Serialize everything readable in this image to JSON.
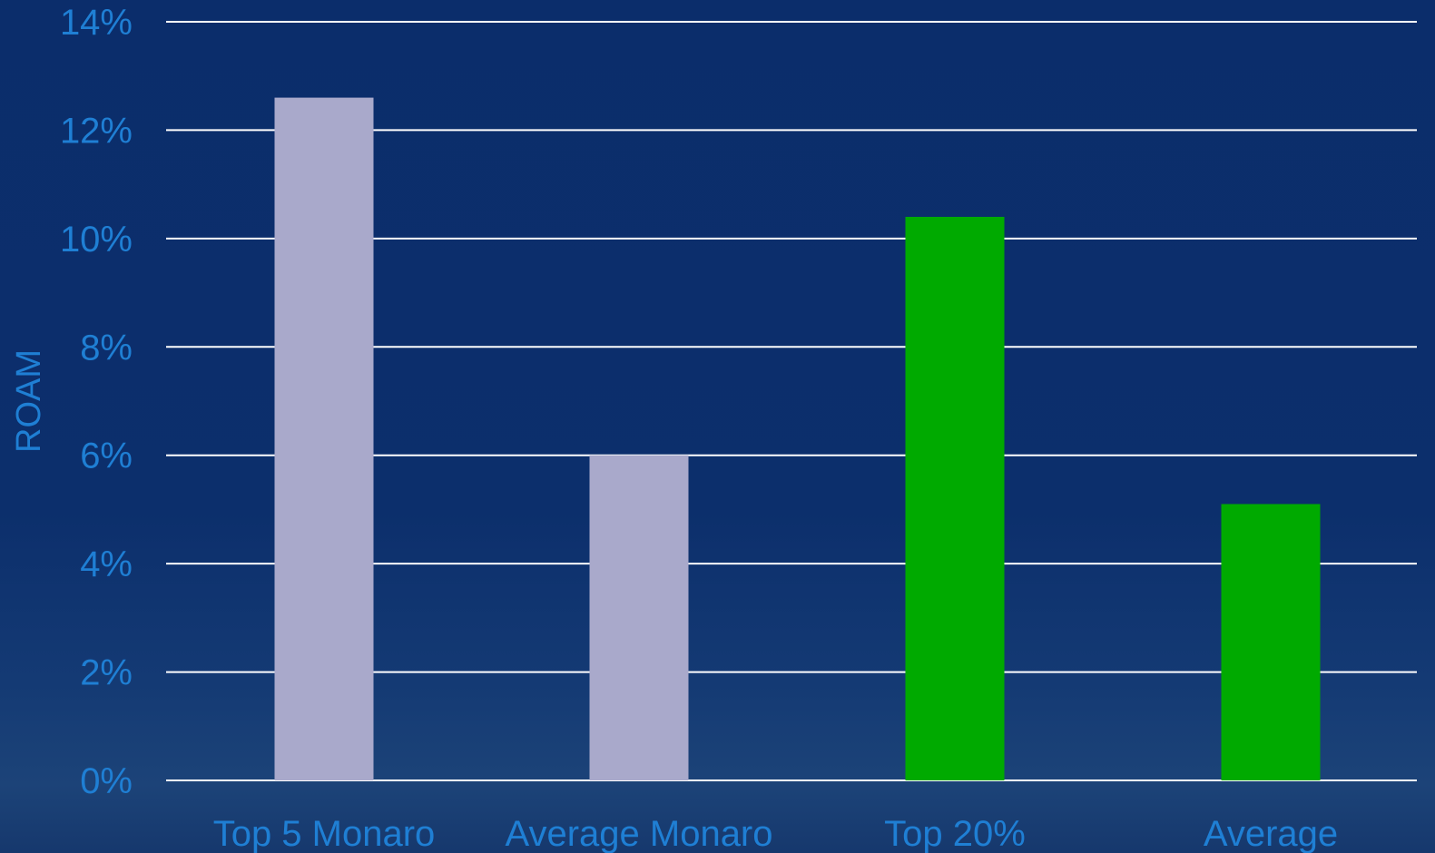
{
  "chart_data": {
    "type": "bar",
    "title": "",
    "xlabel": "",
    "ylabel": "ROAM",
    "categories": [
      "Top 5 Monaro",
      "Average Monaro",
      "Top 20%",
      "Average"
    ],
    "values": [
      12.6,
      6.0,
      10.4,
      5.1
    ],
    "value_unit": "%",
    "ylim": [
      0,
      14
    ],
    "yticks": [
      0,
      2,
      4,
      6,
      8,
      10,
      12,
      14
    ],
    "ytick_labels": [
      "0%",
      "2%",
      "4%",
      "6%",
      "8%",
      "10%",
      "12%",
      "14%"
    ],
    "grid": true,
    "legend": "none",
    "bar_colors": [
      "#a9a9cb",
      "#a9a9cb",
      "#00aa00",
      "#00aa00"
    ],
    "colors": {
      "label_text": "#1f7fd4",
      "gridline": "#ffffff",
      "background": "#0b2d6b"
    }
  }
}
